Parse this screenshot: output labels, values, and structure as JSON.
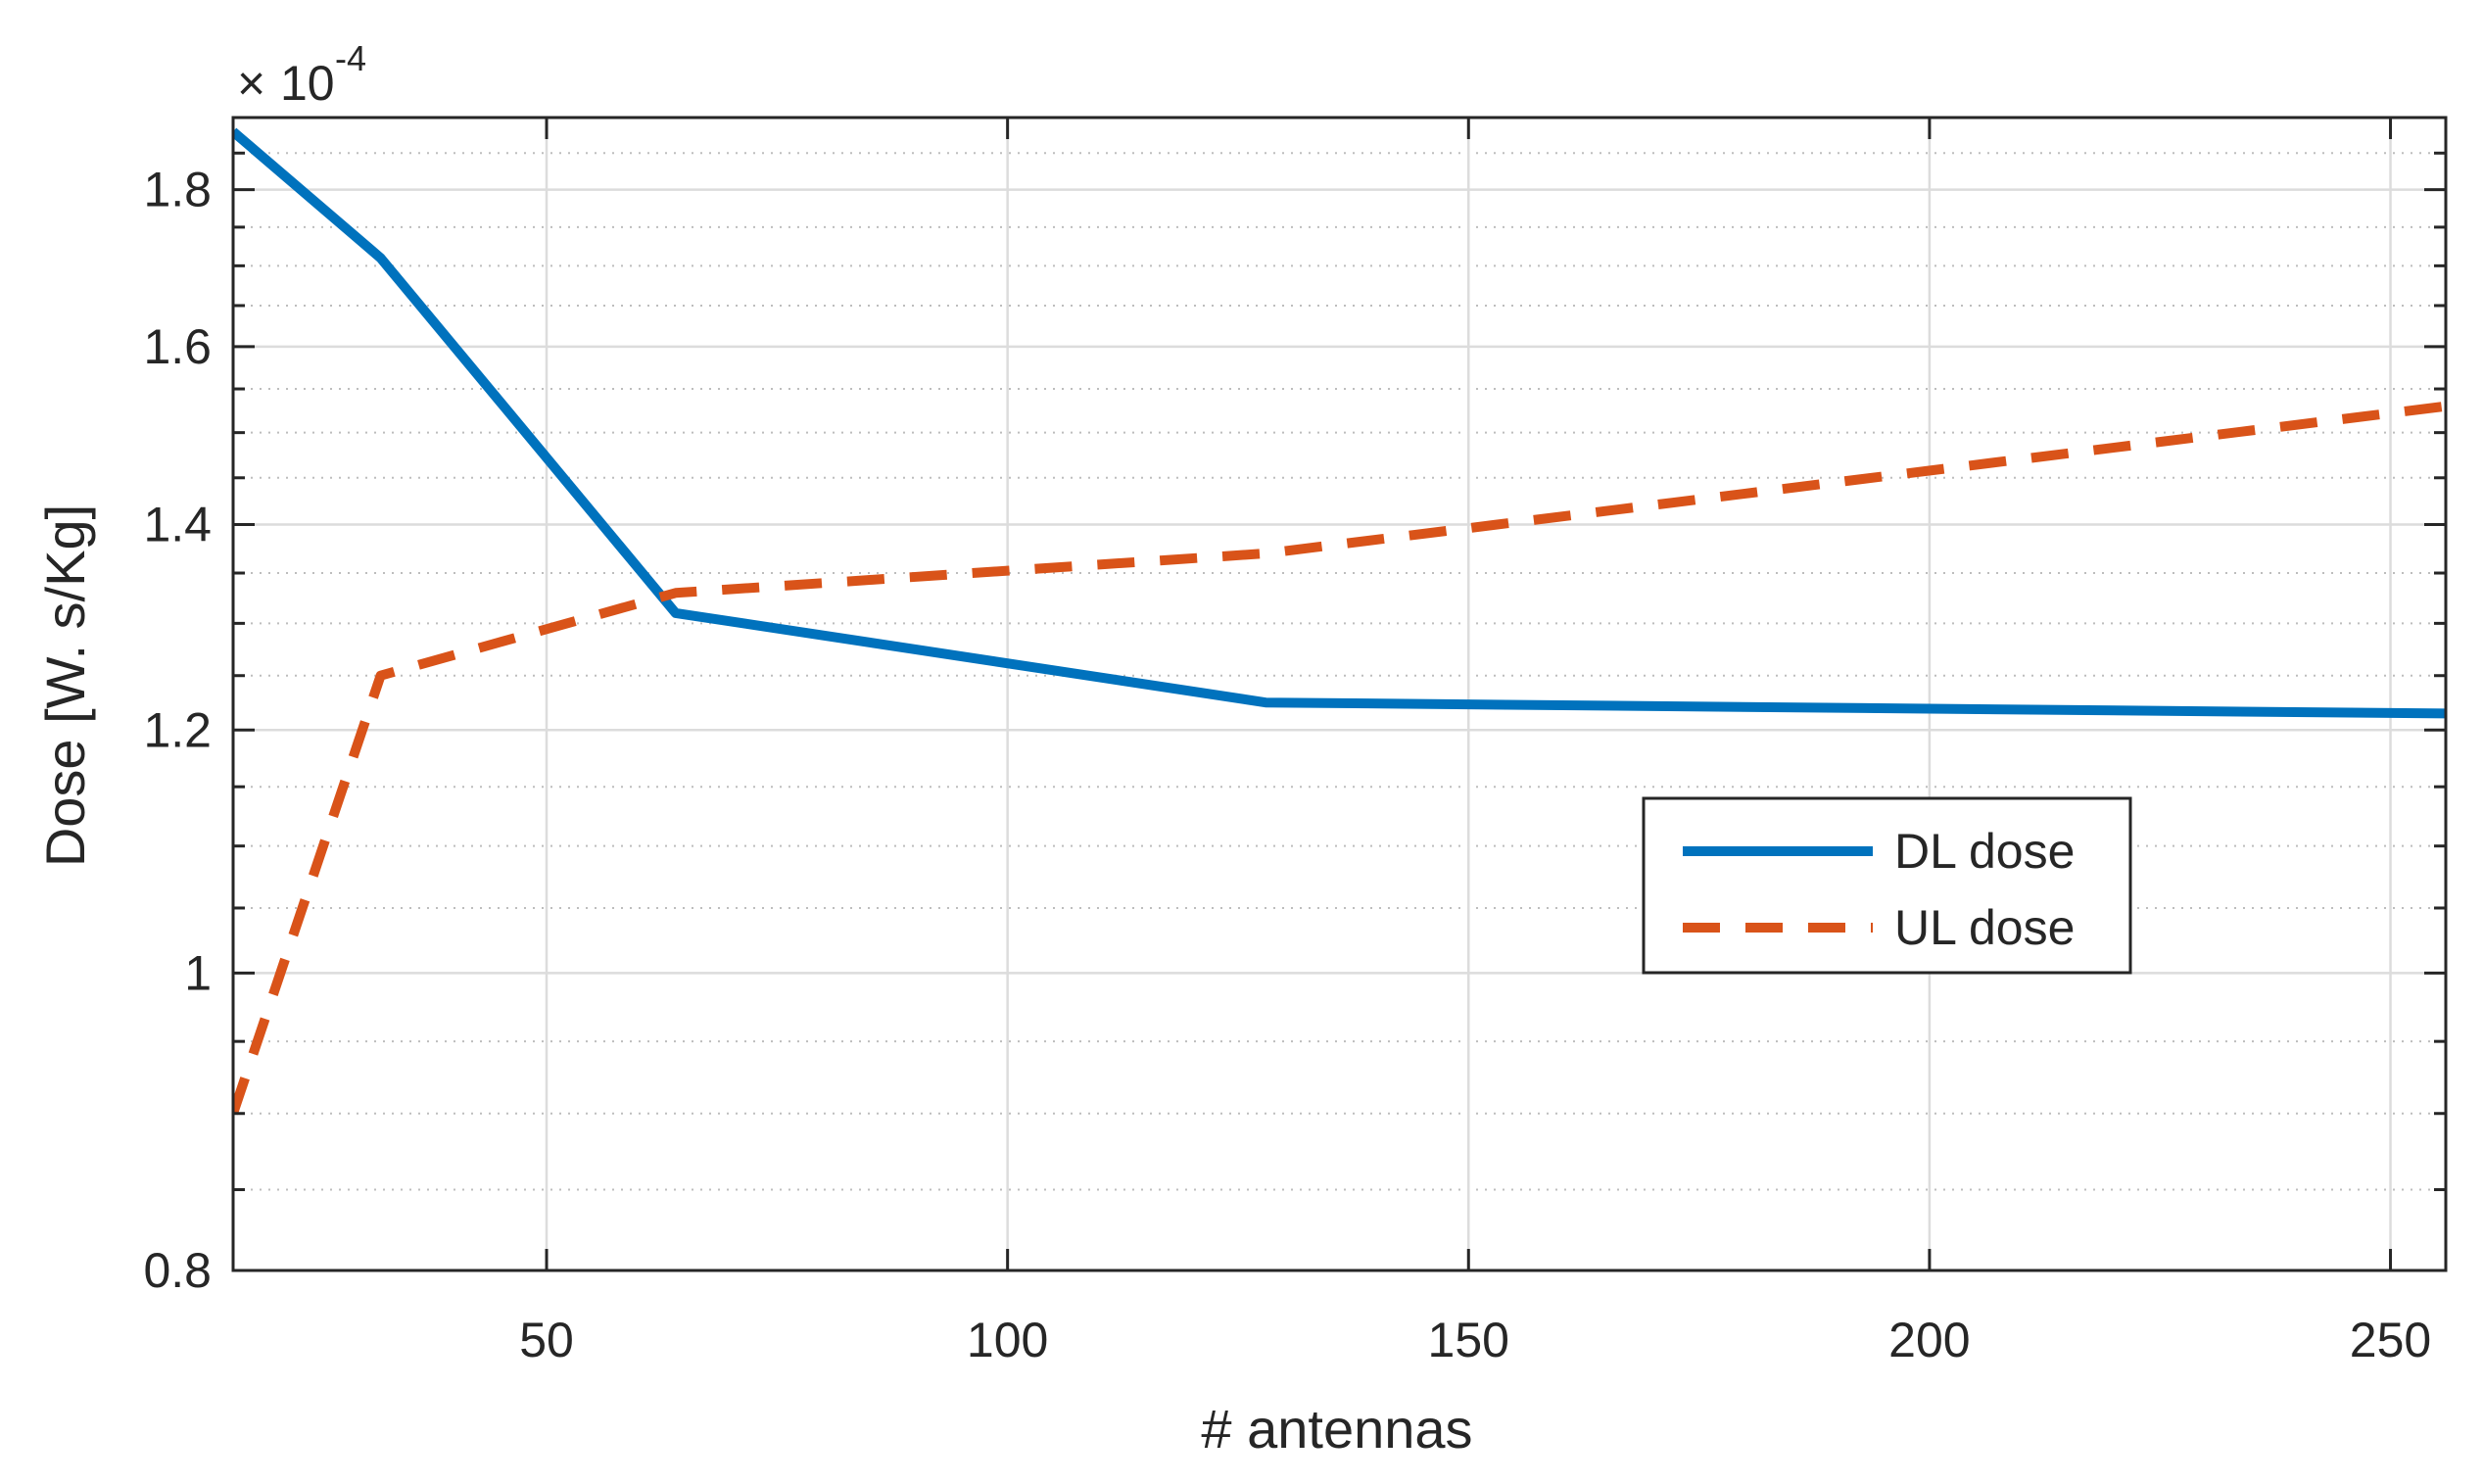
{
  "chart_data": {
    "type": "line",
    "xlabel": "# antennas",
    "ylabel": "Dose [W. s/Kg]",
    "xlim": [
      16,
      256
    ],
    "ylim": [
      0.8,
      1.9
    ],
    "yscale": "log",
    "y_multiplier": {
      "base": "10",
      "exponent": "-4"
    },
    "grid": true,
    "minor_grid": true,
    "legend_position": "center-right",
    "x_ticks": [
      {
        "value": 50,
        "label": "50"
      },
      {
        "value": 100,
        "label": "100"
      },
      {
        "value": 150,
        "label": "150"
      },
      {
        "value": 200,
        "label": "200"
      },
      {
        "value": 250,
        "label": "250"
      }
    ],
    "y_ticks": [
      {
        "value": 0.8,
        "label": "0.8"
      },
      {
        "value": 1.0,
        "label": "1"
      },
      {
        "value": 1.2,
        "label": "1.2"
      },
      {
        "value": 1.4,
        "label": "1.4"
      },
      {
        "value": 1.6,
        "label": "1.6"
      },
      {
        "value": 1.8,
        "label": "1.8"
      }
    ],
    "y_minor_ticks": [
      0.85,
      0.9,
      0.95,
      1.05,
      1.1,
      1.15,
      1.25,
      1.3,
      1.35,
      1.45,
      1.5,
      1.55,
      1.65,
      1.7,
      1.75,
      1.85
    ],
    "series": [
      {
        "name": "DL dose",
        "color": "#0072BD",
        "style": "solid",
        "x": [
          16,
          32,
          64,
          128,
          256
        ],
        "y": [
          1.88,
          1.71,
          1.31,
          1.225,
          1.215
        ]
      },
      {
        "name": "UL dose",
        "color": "#D95319",
        "style": "dashed",
        "x": [
          16,
          32,
          64,
          128,
          256
        ],
        "y": [
          0.9,
          1.25,
          1.33,
          1.37,
          1.53
        ]
      }
    ]
  }
}
